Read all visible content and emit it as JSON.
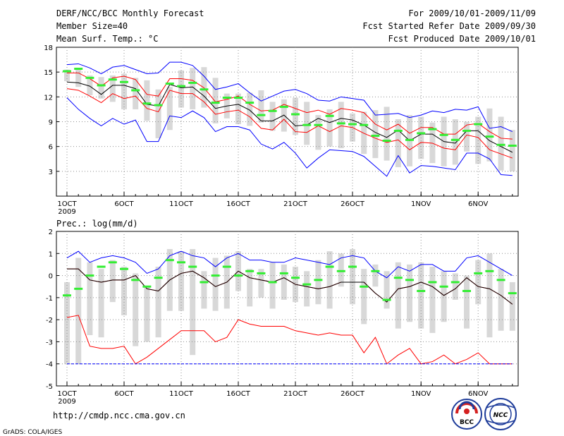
{
  "header": {
    "title": "DERF/NCC/BCC Monthly Forecast",
    "member_size": "Member Size=40",
    "variable": "Mean Surf. Temp.: °C",
    "period": "For 2009/10/01-2009/11/09",
    "fcst_started": "Fcst Started Refer Date 2009/09/30",
    "fcst_produced": "Fcst Produced Date 2009/10/01"
  },
  "footer": {
    "url": "http://cmdp.ncc.cma.gov.cn",
    "grads": "GrADS: COLA/IGES",
    "logo_bcc": "BCC",
    "logo_ncc": "NCC"
  },
  "colors": {
    "envelope": "#0000ff",
    "pct": "#ff0000",
    "mean": "#000000",
    "obs": "#33ee33",
    "box": "#d8d8d8",
    "grid": "#909090"
  },
  "chart_data": [
    {
      "type": "line",
      "title": "Mean Surf. Temp.: °C",
      "xlabel": "",
      "ylabel": "",
      "ylim": [
        0,
        18
      ],
      "yticks": [
        "3",
        "6",
        "9",
        "12",
        "15",
        "18"
      ],
      "x_ticks": [
        {
          "label": "1OCT",
          "day": 1
        },
        {
          "label": "6OCT",
          "day": 6
        },
        {
          "label": "11OCT",
          "day": 11
        },
        {
          "label": "16OCT",
          "day": 16
        },
        {
          "label": "21OCT",
          "day": 21
        },
        {
          "label": "26OCT",
          "day": 26
        },
        {
          "label": "1NOV",
          "day": 32
        },
        {
          "label": "6NOV",
          "day": 37
        }
      ],
      "year_label": "2009",
      "days": [
        1,
        2,
        3,
        4,
        5,
        6,
        7,
        8,
        9,
        10,
        11,
        12,
        13,
        14,
        15,
        16,
        17,
        18,
        19,
        20,
        21,
        22,
        23,
        24,
        25,
        26,
        27,
        28,
        29,
        30,
        31,
        32,
        33,
        34,
        35,
        36,
        37,
        38,
        39,
        40
      ],
      "series": [
        {
          "name": "max",
          "values": [
            15.9,
            16.0,
            15.5,
            14.8,
            15.6,
            15.8,
            15.3,
            14.8,
            14.9,
            16.2,
            16.2,
            15.8,
            14.5,
            12.9,
            13.2,
            13.6,
            12.5,
            11.5,
            12.1,
            12.7,
            12.9,
            12.4,
            11.6,
            11.5,
            12.0,
            11.8,
            11.6,
            9.8,
            9.9,
            10.0,
            9.5,
            9.8,
            10.3,
            10.1,
            10.5,
            10.4,
            10.8,
            8.2,
            8.4,
            7.8
          ]
        },
        {
          "name": "p90",
          "values": [
            14.9,
            14.9,
            14.2,
            13.3,
            14.3,
            14.5,
            14.1,
            12.3,
            12.1,
            14.2,
            14.2,
            14.0,
            13.1,
            11.4,
            11.7,
            12.1,
            11.1,
            10.3,
            10.4,
            11.1,
            10.6,
            10.1,
            10.4,
            9.9,
            10.6,
            10.4,
            10.1,
            8.7,
            8.0,
            8.7,
            7.6,
            8.3,
            8.3,
            7.5,
            7.5,
            8.6,
            8.8,
            7.8,
            7.0,
            6.9
          ]
        },
        {
          "name": "mean",
          "values": [
            13.8,
            13.7,
            13.3,
            12.3,
            13.4,
            13.4,
            13.0,
            11.1,
            10.9,
            13.5,
            13.1,
            13.2,
            12.1,
            10.6,
            10.9,
            11.1,
            10.4,
            9.1,
            9.1,
            9.8,
            8.5,
            8.6,
            9.4,
            8.9,
            9.4,
            9.2,
            8.6,
            7.7,
            7.1,
            8.0,
            6.7,
            7.5,
            7.5,
            6.6,
            6.4,
            7.9,
            7.9,
            6.7,
            6.0,
            5.3
          ]
        },
        {
          "name": "p10",
          "values": [
            13.0,
            12.8,
            12.1,
            11.3,
            12.4,
            11.8,
            12.1,
            10.6,
            10.2,
            12.8,
            12.4,
            12.4,
            11.4,
            9.9,
            10.2,
            10.4,
            9.6,
            8.2,
            8.0,
            9.3,
            7.8,
            7.7,
            8.5,
            7.8,
            8.5,
            8.3,
            7.6,
            7.0,
            6.5,
            6.8,
            5.6,
            6.5,
            6.4,
            5.8,
            5.6,
            7.4,
            7.1,
            5.6,
            5.1,
            4.6
          ]
        },
        {
          "name": "min",
          "values": [
            11.9,
            10.5,
            9.4,
            8.5,
            9.4,
            8.7,
            9.2,
            6.6,
            6.6,
            9.7,
            9.5,
            10.3,
            9.5,
            7.8,
            8.4,
            8.4,
            8.0,
            6.3,
            5.7,
            6.5,
            5.2,
            3.4,
            4.6,
            5.6,
            5.5,
            5.4,
            4.8,
            3.6,
            2.4,
            4.9,
            2.8,
            3.7,
            3.6,
            3.4,
            3.2,
            5.2,
            5.2,
            4.5,
            2.6,
            2.5
          ]
        },
        {
          "name": "obs",
          "values": [
            15.1,
            15.4,
            14.3,
            13.4,
            14.1,
            13.8,
            12.8,
            11.2,
            11.0,
            13.6,
            13.3,
            13.7,
            12.9,
            11.3,
            11.9,
            11.9,
            11.3,
            9.8,
            10.3,
            10.8,
            9.9,
            8.6,
            8.6,
            9.7,
            8.8,
            8.7,
            8.6,
            7.3,
            6.7,
            7.9,
            6.8,
            7.6,
            8.1,
            7.4,
            6.8,
            7.9,
            8.7,
            7.2,
            6.2,
            6.1
          ]
        }
      ],
      "boxes": [
        {
          "day": 1,
          "lo": 13.9,
          "hi": 15.3
        },
        {
          "day": 2,
          "lo": 13.2,
          "hi": 15.4
        },
        {
          "day": 3,
          "lo": 12.2,
          "hi": 14.6
        },
        {
          "day": 4,
          "lo": 11.8,
          "hi": 14.4
        },
        {
          "day": 5,
          "lo": 11.4,
          "hi": 14.6
        },
        {
          "day": 6,
          "lo": 10.5,
          "hi": 14.8
        },
        {
          "day": 7,
          "lo": 10.5,
          "hi": 14.3
        },
        {
          "day": 8,
          "lo": 9.1,
          "hi": 14.0
        },
        {
          "day": 9,
          "lo": 7.0,
          "hi": 12.9
        },
        {
          "day": 10,
          "lo": 8.0,
          "hi": 13.2
        },
        {
          "day": 11,
          "lo": 10.7,
          "hi": 15.2
        },
        {
          "day": 12,
          "lo": 10.5,
          "hi": 15.5
        },
        {
          "day": 13,
          "lo": 10.7,
          "hi": 15.6
        },
        {
          "day": 14,
          "lo": 8.8,
          "hi": 14.3
        },
        {
          "day": 15,
          "lo": 9.4,
          "hi": 12.4
        },
        {
          "day": 16,
          "lo": 8.7,
          "hi": 12.4
        },
        {
          "day": 17,
          "lo": 8.5,
          "hi": 12.5
        },
        {
          "day": 18,
          "lo": 8.9,
          "hi": 12.8
        },
        {
          "day": 19,
          "lo": 7.9,
          "hi": 11.4
        },
        {
          "day": 20,
          "lo": 7.8,
          "hi": 11.7
        },
        {
          "day": 21,
          "lo": 7.4,
          "hi": 11.9
        },
        {
          "day": 22,
          "lo": 6.2,
          "hi": 11.4
        },
        {
          "day": 23,
          "lo": 5.6,
          "hi": 9.8
        },
        {
          "day": 24,
          "lo": 6.0,
          "hi": 10.5
        },
        {
          "day": 25,
          "lo": 5.8,
          "hi": 11.4
        },
        {
          "day": 26,
          "lo": 6.6,
          "hi": 10.0
        },
        {
          "day": 27,
          "lo": 5.1,
          "hi": 10.2
        },
        {
          "day": 28,
          "lo": 4.6,
          "hi": 10.4
        },
        {
          "day": 29,
          "lo": 4.3,
          "hi": 10.8
        },
        {
          "day": 30,
          "lo": 3.5,
          "hi": 9.3
        },
        {
          "day": 31,
          "lo": 3.6,
          "hi": 9.8
        },
        {
          "day": 32,
          "lo": 4.5,
          "hi": 9.6
        },
        {
          "day": 33,
          "lo": 4.0,
          "hi": 8.9
        },
        {
          "day": 34,
          "lo": 3.6,
          "hi": 9.6
        },
        {
          "day": 35,
          "lo": 3.8,
          "hi": 9.3
        },
        {
          "day": 36,
          "lo": 5.4,
          "hi": 9.0
        },
        {
          "day": 37,
          "lo": 3.9,
          "hi": 9.6
        },
        {
          "day": 38,
          "lo": 4.2,
          "hi": 10.6
        },
        {
          "day": 39,
          "lo": 3.1,
          "hi": 9.6
        },
        {
          "day": 40,
          "lo": 3.0,
          "hi": 8.0
        }
      ]
    },
    {
      "type": "line",
      "title": "Prec.: log(mm/d)",
      "xlabel": "",
      "ylabel": "",
      "ylim": [
        -5,
        2
      ],
      "yticks": [
        "-5",
        "-4",
        "-3",
        "-2",
        "-1",
        "0",
        "1",
        "2"
      ],
      "x_ticks": [
        {
          "label": "1OCT",
          "day": 1
        },
        {
          "label": "6OCT",
          "day": 6
        },
        {
          "label": "11OCT",
          "day": 11
        },
        {
          "label": "16OCT",
          "day": 16
        },
        {
          "label": "21OCT",
          "day": 21
        },
        {
          "label": "26OCT",
          "day": 26
        },
        {
          "label": "1NOV",
          "day": 32
        },
        {
          "label": "6NOV",
          "day": 37
        }
      ],
      "year_label": "2009",
      "days": [
        1,
        2,
        3,
        4,
        5,
        6,
        7,
        8,
        9,
        10,
        11,
        12,
        13,
        14,
        15,
        16,
        17,
        18,
        19,
        20,
        21,
        22,
        23,
        24,
        25,
        26,
        27,
        28,
        29,
        30,
        31,
        32,
        33,
        34,
        35,
        36,
        37,
        38,
        39,
        40
      ],
      "series": [
        {
          "name": "max",
          "values": [
            0.8,
            1.1,
            0.6,
            0.8,
            0.9,
            0.8,
            0.6,
            0.1,
            0.3,
            0.9,
            1.1,
            0.9,
            0.8,
            0.4,
            0.8,
            1.0,
            0.7,
            0.7,
            0.6,
            0.6,
            0.8,
            0.7,
            0.6,
            0.5,
            0.8,
            0.9,
            0.8,
            0.2,
            -0.1,
            0.4,
            0.2,
            0.5,
            0.5,
            0.2,
            0.2,
            0.8,
            0.9,
            0.6,
            0.3,
            0.0
          ]
        },
        {
          "name": "p90",
          "values": [
            0.3,
            0.3,
            -0.2,
            -0.3,
            -0.2,
            -0.2,
            0.0,
            -0.6,
            -0.7,
            -0.2,
            0.1,
            0.2,
            -0.1,
            -0.5,
            -0.3,
            0.2,
            -0.1,
            -0.2,
            -0.3,
            -0.1,
            -0.4,
            -0.5,
            -0.6,
            -0.5,
            -0.3,
            -0.3,
            -0.3,
            -0.8,
            -1.2,
            -0.6,
            -0.5,
            -0.3,
            -0.5,
            -0.9,
            -0.6,
            -0.1,
            -0.5,
            -0.6,
            -0.9,
            -1.3
          ]
        },
        {
          "name": "mean",
          "values": [
            0.3,
            0.3,
            -0.2,
            -0.3,
            -0.2,
            -0.2,
            0.0,
            -0.6,
            -0.7,
            -0.2,
            0.1,
            0.2,
            -0.1,
            -0.5,
            -0.3,
            0.2,
            -0.1,
            -0.2,
            -0.3,
            -0.1,
            -0.4,
            -0.5,
            -0.6,
            -0.5,
            -0.3,
            -0.3,
            -0.3,
            -0.8,
            -1.2,
            -0.6,
            -0.5,
            -0.3,
            -0.5,
            -0.9,
            -0.6,
            -0.1,
            -0.5,
            -0.6,
            -0.9,
            -1.3
          ]
        },
        {
          "name": "p10",
          "values": [
            -1.9,
            -1.8,
            -3.2,
            -3.3,
            -3.3,
            -3.2,
            -4.0,
            -3.7,
            -3.3,
            -2.9,
            -2.5,
            -2.5,
            -2.5,
            -3.0,
            -2.8,
            -2.0,
            -2.2,
            -2.3,
            -2.3,
            -2.3,
            -2.5,
            -2.6,
            -2.7,
            -2.6,
            -2.7,
            -2.7,
            -3.5,
            -2.8,
            -4.0,
            -3.6,
            -3.3,
            -4.0,
            -3.9,
            -3.6,
            -4.0,
            -3.8,
            -3.5,
            -4.0,
            -4.0,
            -4.0
          ]
        },
        {
          "name": "min",
          "values": [
            -4.0,
            -4.0,
            -4.0,
            -4.0,
            -4.0,
            -4.0,
            -4.0,
            -4.0,
            -4.0,
            -4.0,
            -4.0,
            -4.0,
            -4.0,
            -4.0,
            -4.0,
            -4.0,
            -4.0,
            -4.0,
            -4.0,
            -4.0,
            -4.0,
            -4.0,
            -4.0,
            -4.0,
            -4.0,
            -4.0,
            -4.0,
            -4.0,
            -4.0,
            -4.0,
            -4.0,
            -4.0,
            -4.0,
            -4.0,
            -4.0,
            -4.0,
            -4.0,
            -4.0,
            -4.0,
            -4.0
          ]
        },
        {
          "name": "obs",
          "values": [
            -0.9,
            -0.6,
            0.0,
            0.4,
            0.6,
            0.3,
            -0.2,
            -0.5,
            -0.1,
            0.7,
            0.6,
            0.4,
            -0.3,
            0.0,
            0.4,
            0.0,
            0.2,
            0.1,
            -0.3,
            0.1,
            -0.1,
            -0.4,
            -0.2,
            0.4,
            0.2,
            0.4,
            -0.5,
            0.2,
            -1.1,
            -0.1,
            -0.2,
            -0.7,
            -0.3,
            -0.5,
            -0.3,
            -0.7,
            0.1,
            0.2,
            -0.2,
            -0.8
          ]
        }
      ],
      "boxes": [
        {
          "day": 1,
          "lo": -4.0,
          "hi": -0.3
        },
        {
          "day": 2,
          "lo": -4.0,
          "hi": 0.8
        },
        {
          "day": 3,
          "lo": -2.7,
          "hi": 0.6
        },
        {
          "day": 4,
          "lo": -2.8,
          "hi": 0.3
        },
        {
          "day": 5,
          "lo": -1.2,
          "hi": 0.7
        },
        {
          "day": 6,
          "lo": -1.8,
          "hi": 0.4
        },
        {
          "day": 7,
          "lo": -3.2,
          "hi": 0.1
        },
        {
          "day": 8,
          "lo": -3.0,
          "hi": -0.5
        },
        {
          "day": 9,
          "lo": -2.8,
          "hi": 0.4
        },
        {
          "day": 10,
          "lo": -1.6,
          "hi": 1.2
        },
        {
          "day": 11,
          "lo": -1.6,
          "hi": 1.1
        },
        {
          "day": 12,
          "lo": -3.6,
          "hi": 1.2
        },
        {
          "day": 13,
          "lo": -1.5,
          "hi": 0.2
        },
        {
          "day": 14,
          "lo": -1.6,
          "hi": 0.8
        },
        {
          "day": 15,
          "lo": -1.5,
          "hi": 0.9
        },
        {
          "day": 16,
          "lo": -0.7,
          "hi": 1.1
        },
        {
          "day": 17,
          "lo": -1.4,
          "hi": 0.3
        },
        {
          "day": 18,
          "lo": -1.0,
          "hi": 0.3
        },
        {
          "day": 19,
          "lo": -1.5,
          "hi": 0.6
        },
        {
          "day": 20,
          "lo": -1.1,
          "hi": 0.5
        },
        {
          "day": 21,
          "lo": -1.2,
          "hi": 0.4
        },
        {
          "day": 22,
          "lo": -1.4,
          "hi": 0.2
        },
        {
          "day": 23,
          "lo": -1.3,
          "hi": 0.7
        },
        {
          "day": 24,
          "lo": -1.5,
          "hi": 1.1
        },
        {
          "day": 25,
          "lo": -0.5,
          "hi": 1.0
        },
        {
          "day": 26,
          "lo": -1.3,
          "hi": 1.2
        },
        {
          "day": 27,
          "lo": -2.2,
          "hi": 0.3
        },
        {
          "day": 28,
          "lo": -0.5,
          "hi": 0.5
        },
        {
          "day": 29,
          "lo": -1.5,
          "hi": 0.2
        },
        {
          "day": 30,
          "lo": -2.4,
          "hi": 0.6
        },
        {
          "day": 31,
          "lo": -2.1,
          "hi": 0.5
        },
        {
          "day": 32,
          "lo": -2.4,
          "hi": 0.6
        },
        {
          "day": 33,
          "lo": -2.6,
          "hi": 0.4
        },
        {
          "day": 34,
          "lo": -2.1,
          "hi": 0.2
        },
        {
          "day": 35,
          "lo": -1.1,
          "hi": 0.1
        },
        {
          "day": 36,
          "lo": -2.4,
          "hi": 0.0
        },
        {
          "day": 37,
          "lo": -1.3,
          "hi": 0.7
        },
        {
          "day": 38,
          "lo": -2.8,
          "hi": 1.0
        },
        {
          "day": 39,
          "lo": -2.5,
          "hi": 0.3
        },
        {
          "day": 40,
          "lo": -2.5,
          "hi": -0.3
        }
      ]
    }
  ]
}
